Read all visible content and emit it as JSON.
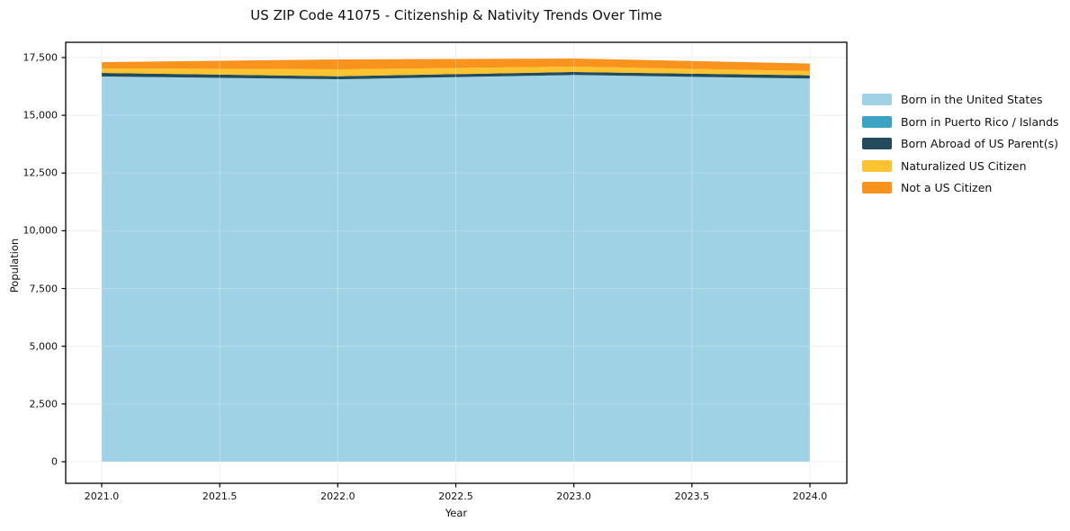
{
  "chart_data": {
    "type": "area",
    "stacked": true,
    "title": "US ZIP Code 41075 - Citizenship & Nativity Trends Over Time",
    "xlabel": "Year",
    "ylabel": "Population",
    "x": [
      2021,
      2022,
      2023,
      2024
    ],
    "series": [
      {
        "name": "Born in the United States",
        "color": "#a0d2e6",
        "values": [
          16680,
          16560,
          16745,
          16590
        ]
      },
      {
        "name": "Born in Puerto Rico / Islands",
        "color": "#3da3c2",
        "values": [
          0,
          0,
          0,
          0
        ]
      },
      {
        "name": "Born Abroad of US Parent(s)",
        "color": "#224b5e",
        "values": [
          155,
          130,
          130,
          140
        ]
      },
      {
        "name": "Naturalized US Citizen",
        "color": "#fcc330",
        "values": [
          195,
          300,
          235,
          185
        ]
      },
      {
        "name": "Not a US Citizen",
        "color": "#f8941d",
        "values": [
          270,
          430,
          350,
          325
        ]
      }
    ],
    "totals": [
      17300,
      17420,
      17460,
      17240
    ],
    "xlim": [
      2020.8475,
      2024.1563
    ],
    "ylim": [
      -935,
      18160
    ],
    "xticks": {
      "values": [
        2021.0,
        2021.5,
        2022.0,
        2022.5,
        2023.0,
        2023.5,
        2024.0
      ],
      "labels": [
        "2021.0",
        "2021.5",
        "2022.0",
        "2022.5",
        "2023.0",
        "2023.5",
        "2024.0"
      ]
    },
    "yticks": {
      "values": [
        0,
        2500,
        5000,
        7500,
        10000,
        12500,
        15000,
        17500
      ],
      "labels": [
        "0",
        "2,500",
        "5,000",
        "7,500",
        "10,000",
        "12,500",
        "15,000",
        "17,500"
      ]
    },
    "grid": true,
    "legend_position": "outside-right",
    "colors": {
      "gridline": "#ebebeb",
      "frame": "#000000",
      "background": "#ffffff"
    }
  }
}
